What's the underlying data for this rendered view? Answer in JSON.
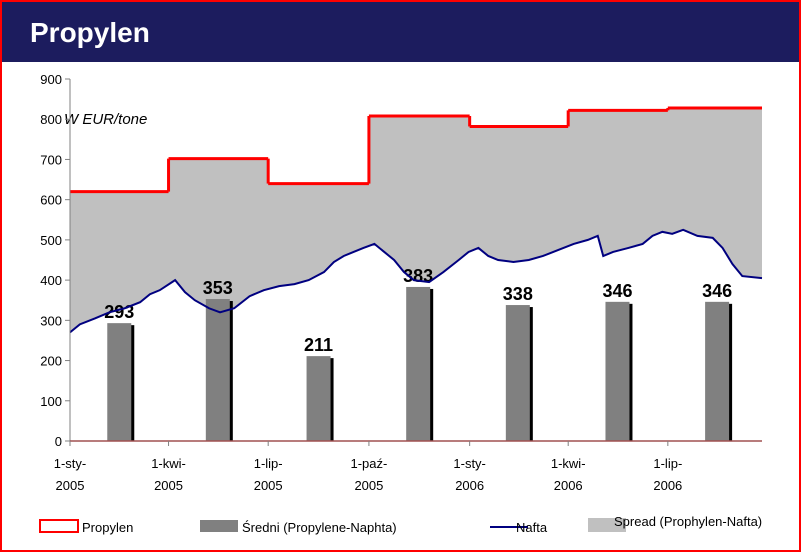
{
  "chart_data": {
    "type": "line",
    "title": "Propylen",
    "annotation": "W  EUR/tone",
    "xlim": [
      "2005-01-01",
      "2006-09-25"
    ],
    "xticks": [
      {
        "value": "2005-01-01",
        "label": "1-sty-2005"
      },
      {
        "value": "2005-04-01",
        "label": "1-kwi-2005"
      },
      {
        "value": "2005-07-01",
        "label": "1-lip-2005"
      },
      {
        "value": "2005-10-01",
        "label": "1-paź-2005"
      },
      {
        "value": "2006-01-01",
        "label": "1-sty-2006"
      },
      {
        "value": "2006-04-01",
        "label": "1-kwi-2006"
      },
      {
        "value": "2006-07-01",
        "label": "1-lip-2006"
      }
    ],
    "ylim": [
      0,
      900
    ],
    "yticks": [
      0,
      100,
      200,
      300,
      400,
      500,
      600,
      700,
      800,
      900
    ],
    "series": [
      {
        "name": "Propylen",
        "color": "#ff0000",
        "style": "step",
        "x": [
          "2005-01-01",
          "2005-04-01",
          "2005-07-01",
          "2005-10-01",
          "2006-01-01",
          "2006-04-01",
          "2006-07-01"
        ],
        "values": [
          620,
          702,
          640,
          808,
          782,
          822,
          828
        ]
      },
      {
        "name": "Średni (Propylene-Naphta)",
        "color": "#808080",
        "style": "bar",
        "x": [
          "2005-02-15",
          "2005-05-16",
          "2005-08-16",
          "2005-11-15",
          "2006-02-14",
          "2006-05-16",
          "2006-08-15"
        ],
        "values": [
          293,
          353,
          211,
          383,
          338,
          346,
          346
        ]
      },
      {
        "name": "Nafta",
        "color": "#000080",
        "style": "line",
        "x": [
          "2005-01-01",
          "2005-01-10",
          "2005-01-24",
          "2005-02-06",
          "2005-02-20",
          "2005-03-06",
          "2005-03-15",
          "2005-03-24",
          "2005-04-07",
          "2005-04-16",
          "2005-04-25",
          "2005-05-08",
          "2005-05-18",
          "2005-05-31",
          "2005-06-14",
          "2005-06-27",
          "2005-07-11",
          "2005-07-25",
          "2005-08-07",
          "2005-08-21",
          "2005-08-30",
          "2005-09-08",
          "2005-09-17",
          "2005-09-26",
          "2005-10-06",
          "2005-10-15",
          "2005-10-24",
          "2005-11-02",
          "2005-11-11",
          "2005-11-25",
          "2005-12-08",
          "2005-12-22",
          "2005-12-31",
          "2006-01-09",
          "2006-01-18",
          "2006-01-27",
          "2006-02-10",
          "2006-02-24",
          "2006-03-09",
          "2006-03-23",
          "2006-04-06",
          "2006-04-19",
          "2006-04-28",
          "2006-05-03",
          "2006-05-12",
          "2006-05-26",
          "2006-06-08",
          "2006-06-17",
          "2006-06-26",
          "2006-07-05",
          "2006-07-15",
          "2006-07-28",
          "2006-08-11",
          "2006-08-20",
          "2006-08-29",
          "2006-09-07",
          "2006-09-25"
        ],
        "values": [
          270,
          290,
          305,
          320,
          330,
          345,
          365,
          375,
          400,
          370,
          350,
          330,
          320,
          330,
          360,
          375,
          385,
          390,
          400,
          420,
          445,
          460,
          470,
          480,
          490,
          470,
          450,
          420,
          400,
          395,
          420,
          450,
          470,
          480,
          460,
          450,
          445,
          450,
          460,
          475,
          490,
          500,
          510,
          460,
          470,
          480,
          490,
          510,
          520,
          515,
          525,
          510,
          505,
          480,
          440,
          410,
          405
        ]
      },
      {
        "name": "Spread (Prophylen-Nafta)",
        "color": "#c0c0c0",
        "style": "spread"
      }
    ]
  }
}
